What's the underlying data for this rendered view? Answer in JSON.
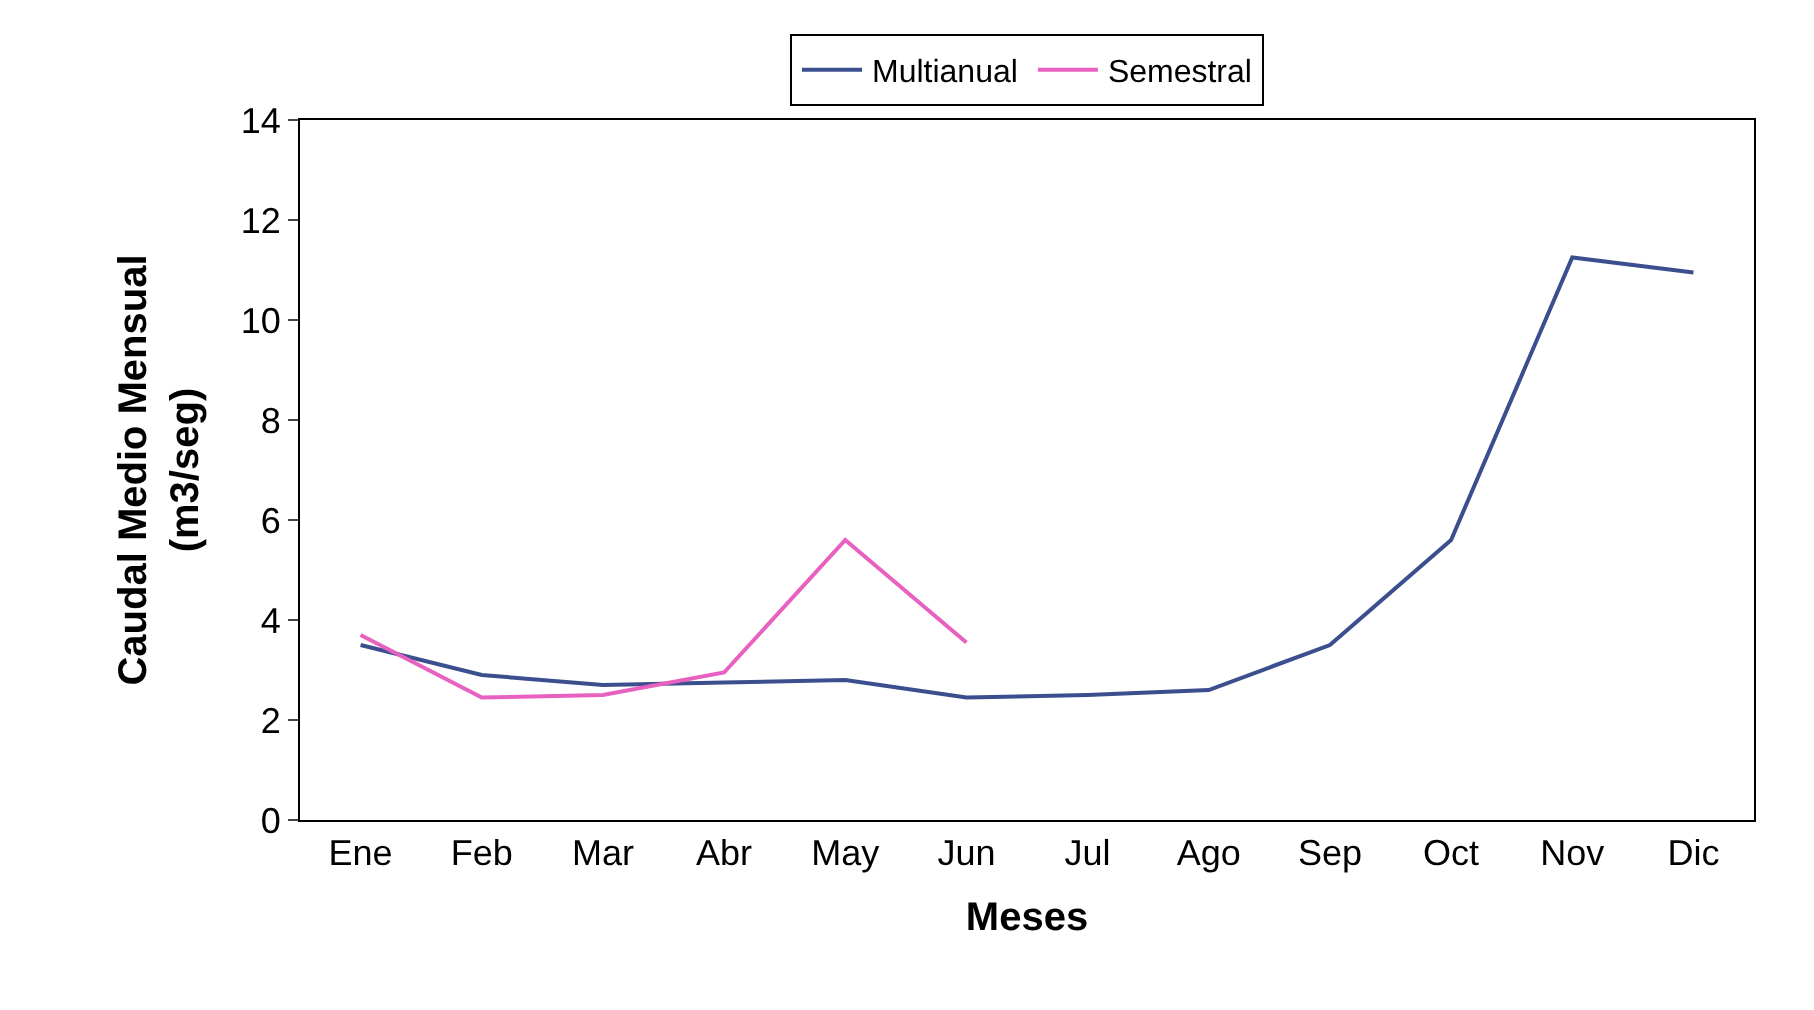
{
  "chart_data": {
    "type": "line",
    "xlabel": "Meses",
    "ylabel": "Caudal Medio Mensual\n(m3/seg)",
    "categories": [
      "Ene",
      "Feb",
      "Mar",
      "Abr",
      "May",
      "Jun",
      "Jul",
      "Ago",
      "Sep",
      "Oct",
      "Nov",
      "Dic"
    ],
    "series": [
      {
        "name": "Multianual",
        "color": "#3b4f8f",
        "values": [
          3.5,
          2.9,
          2.7,
          2.75,
          2.8,
          2.45,
          2.5,
          2.6,
          3.5,
          5.6,
          11.25,
          10.95
        ]
      },
      {
        "name": "Semestral",
        "color": "#e860c0",
        "values": [
          3.7,
          2.45,
          2.5,
          2.95,
          5.6,
          3.55,
          null,
          null,
          null,
          null,
          null,
          null
        ]
      }
    ],
    "ylim": [
      0,
      14
    ],
    "yticks": [
      0,
      2,
      4,
      6,
      8,
      10,
      12,
      14
    ],
    "legend": "top",
    "marker": "none",
    "line_style": "solid"
  }
}
